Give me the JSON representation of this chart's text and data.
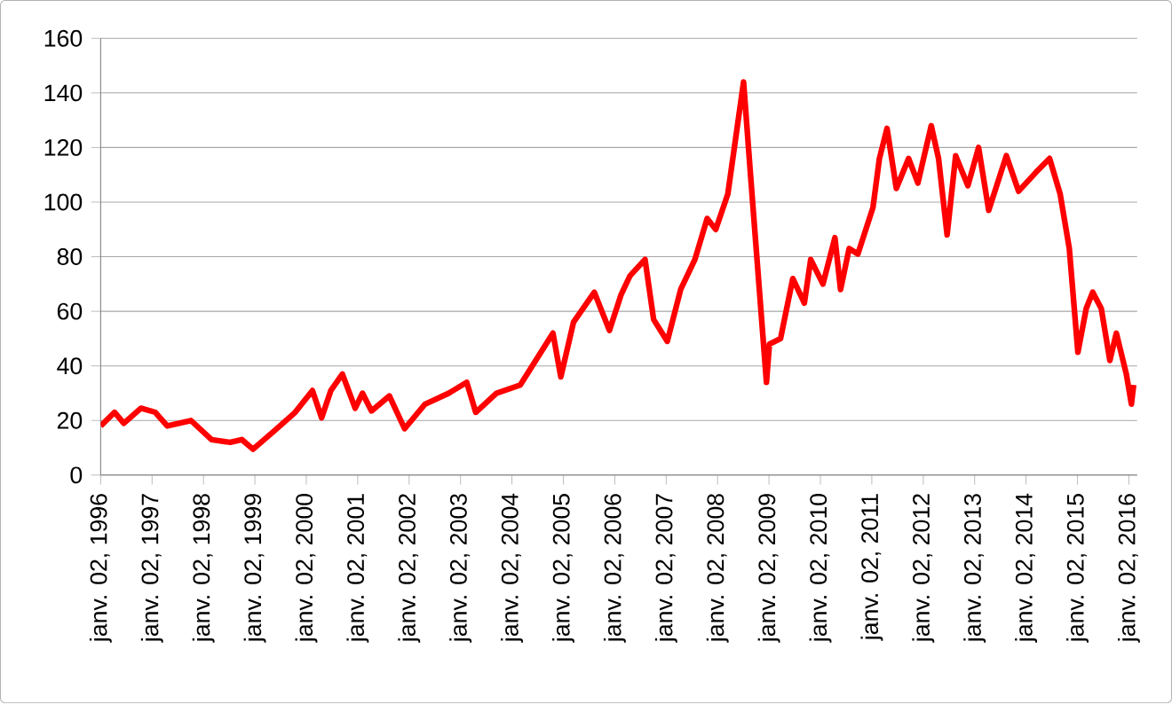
{
  "chart_data": {
    "type": "line",
    "color": "#ff0000",
    "marker": "none",
    "line_style": "solid",
    "grid": "y",
    "x": [
      "1996-01-02",
      "1996-04-10",
      "1996-06-15",
      "1996-10-15",
      "1997-01-25",
      "1997-04-20",
      "1997-10-05",
      "1998-03-01",
      "1998-07-10",
      "1998-10-01",
      "1998-12-20",
      "1999-05-15",
      "1999-10-15",
      "2000-02-15",
      "2000-04-20",
      "2000-06-25",
      "2000-09-15",
      "2000-12-15",
      "2001-02-05",
      "2001-04-10",
      "2001-08-15",
      "2001-12-01",
      "2002-04-25",
      "2002-10-10",
      "2003-02-15",
      "2003-04-20",
      "2003-09-15",
      "2004-03-01",
      "2004-10-20",
      "2004-12-15",
      "2005-03-15",
      "2005-08-10",
      "2005-11-25",
      "2006-02-15",
      "2006-04-20",
      "2006-08-05",
      "2006-10-05",
      "2007-01-10",
      "2007-04-15",
      "2007-07-25",
      "2007-10-20",
      "2007-12-20",
      "2008-03-15",
      "2008-07-05",
      "2008-08-25",
      "2008-12-15",
      "2009-01-05",
      "2009-03-25",
      "2009-06-20",
      "2009-09-10",
      "2009-10-25",
      "2010-01-20",
      "2010-04-15",
      "2010-05-25",
      "2010-07-25",
      "2010-09-25",
      "2011-01-10",
      "2011-02-25",
      "2011-04-20",
      "2011-06-25",
      "2011-09-20",
      "2011-11-25",
      "2012-02-28",
      "2012-04-20",
      "2012-06-20",
      "2012-08-20",
      "2012-11-15",
      "2013-01-30",
      "2013-04-12",
      "2013-08-15",
      "2013-11-10",
      "2014-03-15",
      "2014-06-18",
      "2014-09-01",
      "2014-11-05",
      "2015-01-05",
      "2015-03-05",
      "2015-04-20",
      "2015-06-20",
      "2015-08-20",
      "2015-10-05",
      "2015-12-15",
      "2016-01-20",
      "2016-02-05"
    ],
    "values": [
      18,
      23,
      19,
      24.5,
      23,
      18,
      20,
      13,
      12,
      13,
      9.5,
      16,
      23,
      31,
      21,
      31,
      37,
      24.5,
      30,
      23.5,
      29,
      17,
      26,
      30,
      34,
      23,
      30,
      33,
      52,
      36,
      56,
      67,
      53,
      66,
      73,
      79,
      57,
      49,
      68,
      79,
      94,
      90,
      103,
      144,
      109,
      34,
      48,
      50,
      72,
      63,
      79,
      70,
      87,
      68,
      83,
      81,
      98,
      116,
      127,
      105,
      116,
      107,
      128,
      116,
      88,
      117,
      106,
      120,
      97,
      117,
      104,
      111,
      116,
      103,
      83,
      45,
      61,
      67,
      61,
      42,
      52,
      37,
      26,
      33
    ],
    "xlim": [
      "1996-01-02",
      "2016-03-01"
    ],
    "ylim": [
      0,
      160
    ],
    "yticks": [
      0,
      20,
      40,
      60,
      80,
      100,
      120,
      140,
      160
    ],
    "xticks": [
      {
        "value": "1996-01-02",
        "label": "janv. 02, 1996"
      },
      {
        "value": "1997-01-02",
        "label": "janv. 02, 1997"
      },
      {
        "value": "1998-01-02",
        "label": "janv. 02, 1998"
      },
      {
        "value": "1999-01-02",
        "label": "janv. 02, 1999"
      },
      {
        "value": "2000-01-02",
        "label": "janv. 02, 2000"
      },
      {
        "value": "2001-01-02",
        "label": "janv. 02, 2001"
      },
      {
        "value": "2002-01-02",
        "label": "janv. 02, 2002"
      },
      {
        "value": "2003-01-02",
        "label": "janv. 02, 2003"
      },
      {
        "value": "2004-01-02",
        "label": "janv. 02, 2004"
      },
      {
        "value": "2005-01-02",
        "label": "janv. 02, 2005"
      },
      {
        "value": "2006-01-02",
        "label": "janv. 02, 2006"
      },
      {
        "value": "2007-01-02",
        "label": "janv. 02, 2007"
      },
      {
        "value": "2008-01-02",
        "label": "janv. 02, 2008"
      },
      {
        "value": "2009-01-02",
        "label": "janv. 02, 2009"
      },
      {
        "value": "2010-01-02",
        "label": "janv. 02, 2010"
      },
      {
        "value": "2011-01-02",
        "label": "janv. 02, 2011"
      },
      {
        "value": "2012-01-02",
        "label": "janv. 02, 2012"
      },
      {
        "value": "2013-01-02",
        "label": "janv. 02, 2013"
      },
      {
        "value": "2014-01-02",
        "label": "janv. 02, 2014"
      },
      {
        "value": "2015-01-02",
        "label": "janv. 02, 2015"
      },
      {
        "value": "2016-01-02",
        "label": "janv. 02, 2016"
      }
    ]
  }
}
